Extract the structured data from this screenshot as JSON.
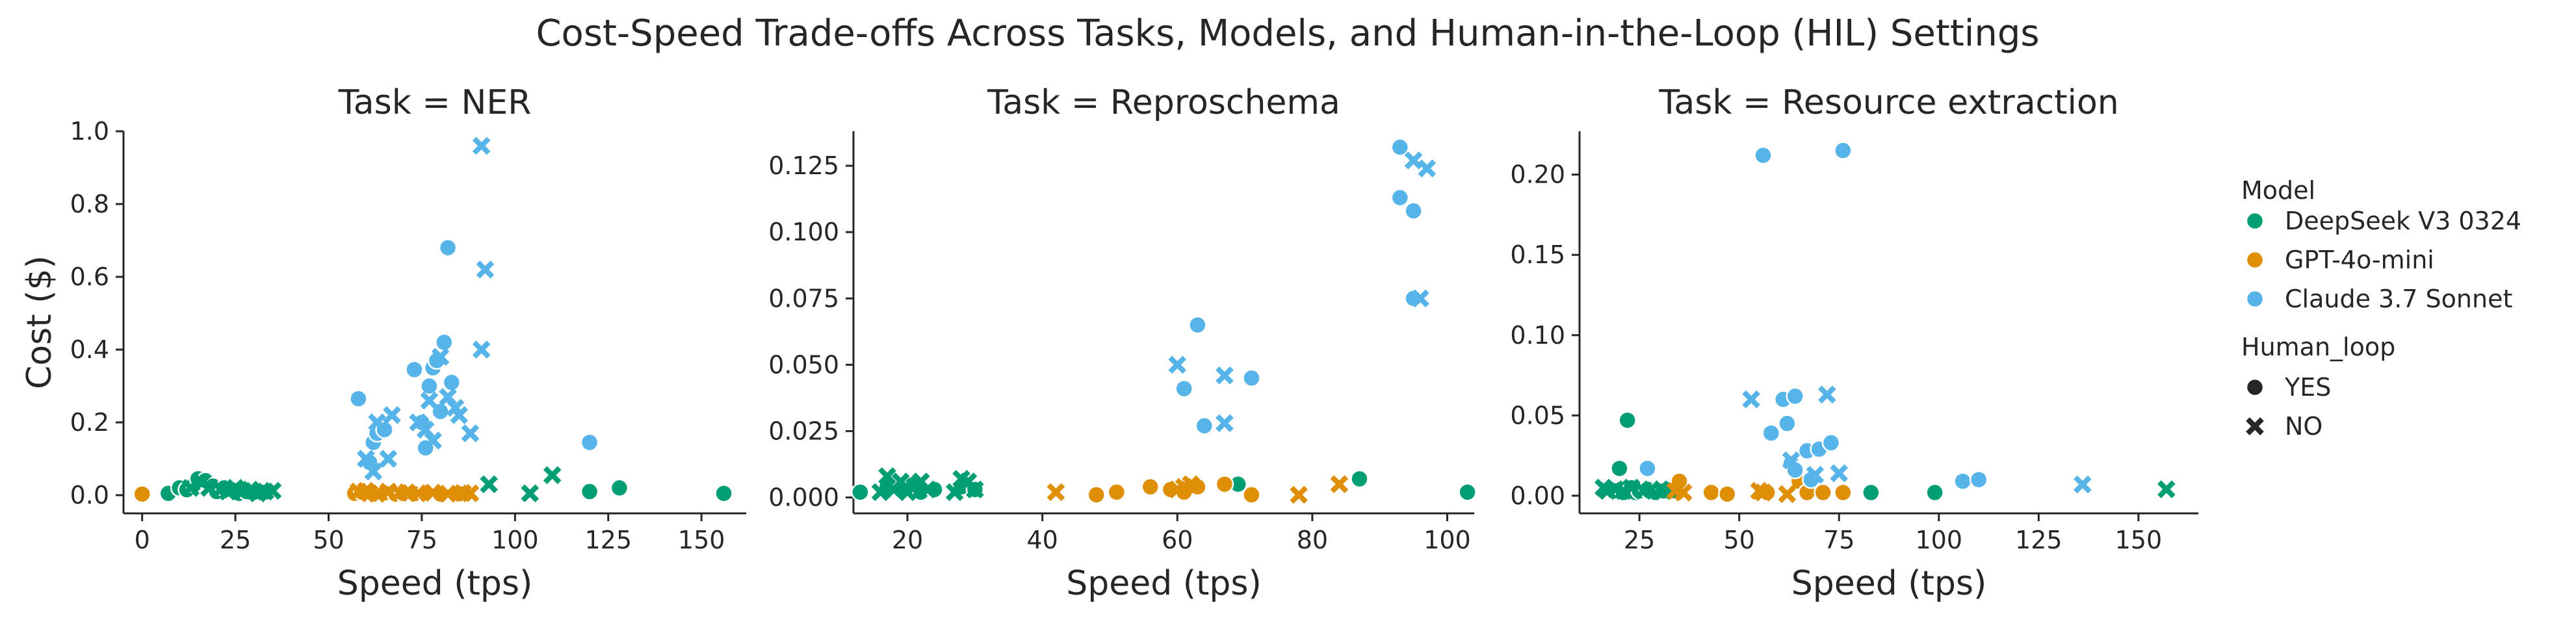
{
  "chart_data": {
    "type": "scatter",
    "title": "Cost-Speed Trade-offs Across Tasks, Models, and Human-in-the-Loop (HIL) Settings",
    "legend": {
      "placement": "right",
      "hue_title": "Model",
      "style_title": "Human_loop",
      "models": [
        {
          "name": "DeepSeek V3 0324",
          "color": "#029e73"
        },
        {
          "name": "GPT-4o-mini",
          "color": "#de8f05"
        },
        {
          "name": "Claude 3.7 Sonnet",
          "color": "#56b4e9"
        }
      ],
      "markers": [
        {
          "name": "YES",
          "shape": "circle"
        },
        {
          "name": "NO",
          "shape": "x"
        }
      ]
    },
    "panels": [
      {
        "title": "Task = NER",
        "xlabel": "Speed (tps)",
        "ylabel": "Cost ($)",
        "xlim": [
          -5,
          162
        ],
        "ylim": [
          -0.05,
          1.0
        ],
        "xticks": [
          0,
          25,
          50,
          75,
          100,
          125,
          150
        ],
        "yticks": [
          0.0,
          0.2,
          0.4,
          0.6,
          0.8,
          1.0
        ],
        "ytick_labels": [
          "0.0",
          "0.2",
          "0.4",
          "0.6",
          "0.8",
          "1.0"
        ],
        "series": [
          {
            "model": "DeepSeek V3 0324",
            "human_loop": "YES",
            "points": [
              [
                7,
                0.005
              ],
              [
                10,
                0.02
              ],
              [
                12,
                0.015
              ],
              [
                14,
                0.03
              ],
              [
                15,
                0.045
              ],
              [
                17,
                0.04
              ],
              [
                19,
                0.025
              ],
              [
                20,
                0.01
              ],
              [
                22,
                0.02
              ],
              [
                24,
                0.015
              ],
              [
                26,
                0.005
              ],
              [
                28,
                0.01
              ],
              [
                30,
                0.008
              ],
              [
                120,
                0.01
              ],
              [
                128,
                0.02
              ],
              [
                156,
                0.005
              ]
            ]
          },
          {
            "model": "DeepSeek V3 0324",
            "human_loop": "NO",
            "points": [
              [
                13,
                0.02
              ],
              [
                16,
                0.035
              ],
              [
                18,
                0.02
              ],
              [
                21,
                0.015
              ],
              [
                23,
                0.01
              ],
              [
                25,
                0.02
              ],
              [
                27,
                0.012
              ],
              [
                29,
                0.015
              ],
              [
                31,
                0.005
              ],
              [
                33,
                0.01
              ],
              [
                35,
                0.012
              ],
              [
                93,
                0.03
              ],
              [
                104,
                0.005
              ],
              [
                110,
                0.055
              ]
            ]
          },
          {
            "model": "GPT-4o-mini",
            "human_loop": "YES",
            "points": [
              [
                0,
                0.003
              ],
              [
                57,
                0.005
              ],
              [
                59,
                0.008
              ],
              [
                62,
                0.004
              ],
              [
                65,
                0.006
              ],
              [
                68,
                0.003
              ],
              [
                70,
                0.005
              ],
              [
                73,
                0.004
              ],
              [
                76,
                0.006
              ],
              [
                80,
                0.003
              ],
              [
                85,
                0.004
              ]
            ]
          },
          {
            "model": "GPT-4o-mini",
            "human_loop": "NO",
            "points": [
              [
                58,
                0.01
              ],
              [
                60,
                0.012
              ],
              [
                61,
                0.005
              ],
              [
                63,
                0.004
              ],
              [
                66,
                0.01
              ],
              [
                69,
                0.006
              ],
              [
                71,
                0.008
              ],
              [
                74,
                0.005
              ],
              [
                78,
                0.007
              ],
              [
                82,
                0.004
              ],
              [
                86,
                0.006
              ],
              [
                88,
                0.005
              ]
            ]
          },
          {
            "model": "Claude 3.7 Sonnet",
            "human_loop": "YES",
            "points": [
              [
                58,
                0.265
              ],
              [
                61,
                0.09
              ],
              [
                62,
                0.145
              ],
              [
                63,
                0.17
              ],
              [
                65,
                0.18
              ],
              [
                73,
                0.345
              ],
              [
                75,
                0.2
              ],
              [
                76,
                0.13
              ],
              [
                77,
                0.3
              ],
              [
                78,
                0.35
              ],
              [
                79,
                0.37
              ],
              [
                80,
                0.23
              ],
              [
                81,
                0.42
              ],
              [
                82,
                0.68
              ],
              [
                83,
                0.31
              ],
              [
                120,
                0.145
              ]
            ]
          },
          {
            "model": "Claude 3.7 Sonnet",
            "human_loop": "NO",
            "points": [
              [
                60,
                0.1
              ],
              [
                62,
                0.065
              ],
              [
                63,
                0.2
              ],
              [
                66,
                0.1
              ],
              [
                67,
                0.22
              ],
              [
                74,
                0.2
              ],
              [
                76,
                0.18
              ],
              [
                77,
                0.26
              ],
              [
                78,
                0.15
              ],
              [
                80,
                0.38
              ],
              [
                82,
                0.27
              ],
              [
                84,
                0.24
              ],
              [
                85,
                0.22
              ],
              [
                88,
                0.17
              ],
              [
                91,
                0.96
              ],
              [
                91,
                0.4
              ],
              [
                92,
                0.62
              ]
            ]
          }
        ]
      },
      {
        "title": "Task = Reproschema",
        "xlabel": "Speed (tps)",
        "ylabel": "",
        "xlim": [
          12,
          104
        ],
        "ylim": [
          -0.006,
          0.138
        ],
        "xticks": [
          20,
          40,
          60,
          80,
          100
        ],
        "yticks": [
          0.0,
          0.025,
          0.05,
          0.075,
          0.1,
          0.125
        ],
        "ytick_labels": [
          "0.000",
          "0.025",
          "0.050",
          "0.075",
          "0.100",
          "0.125"
        ],
        "series": [
          {
            "model": "DeepSeek V3 0324",
            "human_loop": "YES",
            "points": [
              [
                13,
                0.002
              ],
              [
                17,
                0.004
              ],
              [
                19,
                0.003
              ],
              [
                21,
                0.005
              ],
              [
                22,
                0.002
              ],
              [
                24,
                0.003
              ],
              [
                28,
                0.004
              ],
              [
                30,
                0.003
              ],
              [
                69,
                0.005
              ],
              [
                87,
                0.007
              ],
              [
                103,
                0.002
              ]
            ]
          },
          {
            "model": "DeepSeek V3 0324",
            "human_loop": "NO",
            "points": [
              [
                16,
                0.002
              ],
              [
                17,
                0.008
              ],
              [
                18,
                0.003
              ],
              [
                19,
                0.006
              ],
              [
                20,
                0.002
              ],
              [
                21,
                0.004
              ],
              [
                22,
                0.006
              ],
              [
                23,
                0.003
              ],
              [
                27,
                0.002
              ],
              [
                28,
                0.007
              ],
              [
                29,
                0.006
              ],
              [
                30,
                0.003
              ]
            ]
          },
          {
            "model": "GPT-4o-mini",
            "human_loop": "YES",
            "points": [
              [
                48,
                0.001
              ],
              [
                51,
                0.002
              ],
              [
                56,
                0.004
              ],
              [
                59,
                0.003
              ],
              [
                61,
                0.002
              ],
              [
                63,
                0.004
              ],
              [
                67,
                0.005
              ],
              [
                71,
                0.001
              ]
            ]
          },
          {
            "model": "GPT-4o-mini",
            "human_loop": "NO",
            "points": [
              [
                42,
                0.002
              ],
              [
                60,
                0.003
              ],
              [
                61,
                0.004
              ],
              [
                62,
                0.005
              ],
              [
                78,
                0.001
              ],
              [
                84,
                0.005
              ]
            ]
          },
          {
            "model": "Claude 3.7 Sonnet",
            "human_loop": "YES",
            "points": [
              [
                61,
                0.041
              ],
              [
                63,
                0.065
              ],
              [
                64,
                0.027
              ],
              [
                71,
                0.045
              ],
              [
                93,
                0.132
              ],
              [
                93,
                0.113
              ],
              [
                95,
                0.108
              ],
              [
                95,
                0.075
              ]
            ]
          },
          {
            "model": "Claude 3.7 Sonnet",
            "human_loop": "NO",
            "points": [
              [
                60,
                0.05
              ],
              [
                67,
                0.046
              ],
              [
                67,
                0.028
              ],
              [
                95,
                0.127
              ],
              [
                96,
                0.075
              ],
              [
                97,
                0.124
              ]
            ]
          }
        ]
      },
      {
        "title": "Task = Resource extraction",
        "xlabel": "Speed (tps)",
        "ylabel": "",
        "xlim": [
          10,
          165
        ],
        "ylim": [
          -0.011,
          0.227
        ],
        "xticks": [
          25,
          50,
          75,
          100,
          125,
          150
        ],
        "yticks": [
          0.0,
          0.05,
          0.1,
          0.15,
          0.2
        ],
        "ytick_labels": [
          "0.00",
          "0.05",
          "0.10",
          "0.15",
          "0.20"
        ],
        "series": [
          {
            "model": "DeepSeek V3 0324",
            "human_loop": "YES",
            "points": [
              [
                19,
                0.003
              ],
              [
                20,
                0.017
              ],
              [
                21,
                0.002
              ],
              [
                22,
                0.047
              ],
              [
                23,
                0.005
              ],
              [
                24,
                0.002
              ],
              [
                25,
                0.003
              ],
              [
                27,
                0.004
              ],
              [
                29,
                0.002
              ],
              [
                31,
                0.003
              ],
              [
                34,
                0.003
              ],
              [
                83,
                0.002
              ],
              [
                99,
                0.002
              ]
            ]
          },
          {
            "model": "DeepSeek V3 0324",
            "human_loop": "NO",
            "points": [
              [
                16,
                0.005
              ],
              [
                17,
                0.003
              ],
              [
                19,
                0.004
              ],
              [
                21,
                0.003
              ],
              [
                23,
                0.005
              ],
              [
                26,
                0.003
              ],
              [
                28,
                0.004
              ],
              [
                31,
                0.003
              ],
              [
                33,
                0.004
              ],
              [
                157,
                0.004
              ]
            ]
          },
          {
            "model": "GPT-4o-mini",
            "human_loop": "YES",
            "points": [
              [
                35,
                0.009
              ],
              [
                43,
                0.002
              ],
              [
                47,
                0.001
              ],
              [
                57,
                0.002
              ],
              [
                65,
                0.009
              ],
              [
                67,
                0.002
              ],
              [
                71,
                0.002
              ],
              [
                76,
                0.002
              ]
            ]
          },
          {
            "model": "GPT-4o-mini",
            "human_loop": "NO",
            "points": [
              [
                34,
                0.003
              ],
              [
                36,
                0.002
              ],
              [
                55,
                0.003
              ],
              [
                56,
                0.002
              ],
              [
                62,
                0.001
              ]
            ]
          },
          {
            "model": "Claude 3.7 Sonnet",
            "human_loop": "YES",
            "points": [
              [
                27,
                0.017
              ],
              [
                56,
                0.212
              ],
              [
                58,
                0.039
              ],
              [
                61,
                0.06
              ],
              [
                62,
                0.045
              ],
              [
                63,
                0.02
              ],
              [
                64,
                0.016
              ],
              [
                64,
                0.062
              ],
              [
                67,
                0.028
              ],
              [
                68,
                0.01
              ],
              [
                70,
                0.029
              ],
              [
                73,
                0.033
              ],
              [
                76,
                0.215
              ],
              [
                106,
                0.009
              ],
              [
                110,
                0.01
              ]
            ]
          },
          {
            "model": "Claude 3.7 Sonnet",
            "human_loop": "NO",
            "points": [
              [
                53,
                0.06
              ],
              [
                63,
                0.022
              ],
              [
                69,
                0.013
              ],
              [
                72,
                0.063
              ],
              [
                75,
                0.014
              ],
              [
                136,
                0.007
              ]
            ]
          }
        ]
      }
    ]
  }
}
